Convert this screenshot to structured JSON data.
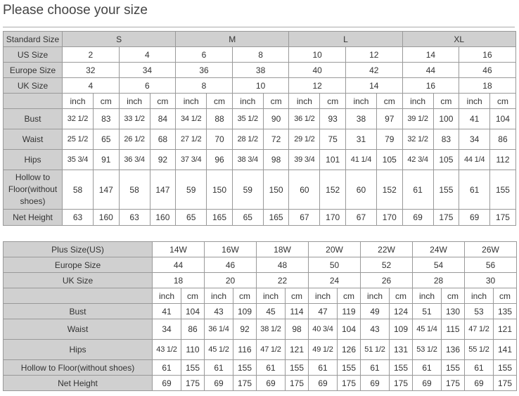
{
  "title": "Please choose your size",
  "colors": {
    "header_bg": "#d0d0d0",
    "border": "#999999",
    "text": "#333333"
  },
  "standard_table": {
    "row_labels": {
      "standard": "Standard Size",
      "us": "US Size",
      "europe": "Europe Size",
      "uk": "UK Size",
      "units": ""
    },
    "standard_sizes": [
      "S",
      "M",
      "L",
      "XL"
    ],
    "us_sizes": [
      "2",
      "4",
      "6",
      "8",
      "10",
      "12",
      "14",
      "16"
    ],
    "europe_sizes": [
      "32",
      "34",
      "36",
      "38",
      "40",
      "42",
      "44",
      "46"
    ],
    "uk_sizes": [
      "4",
      "6",
      "8",
      "10",
      "12",
      "14",
      "16",
      "18"
    ],
    "unit_labels": [
      "inch",
      "cm"
    ],
    "measurements": [
      {
        "label": "Bust",
        "values": [
          "32 1/2",
          "83",
          "33 1/2",
          "84",
          "34 1/2",
          "88",
          "35 1/2",
          "90",
          "36 1/2",
          "93",
          "38",
          "97",
          "39 1/2",
          "100",
          "41",
          "104"
        ]
      },
      {
        "label": "Waist",
        "values": [
          "25 1/2",
          "65",
          "26 1/2",
          "68",
          "27 1/2",
          "70",
          "28 1/2",
          "72",
          "29 1/2",
          "75",
          "31",
          "79",
          "32 1/2",
          "83",
          "34",
          "86"
        ]
      },
      {
        "label": "Hips",
        "values": [
          "35 3/4",
          "91",
          "36 3/4",
          "92",
          "37 3/4",
          "96",
          "38 3/4",
          "98",
          "39 3/4",
          "101",
          "41 1/4",
          "105",
          "42 3/4",
          "105",
          "44 1/4",
          "112"
        ]
      },
      {
        "label": "Hollow to Floor(without shoes)",
        "values": [
          "58",
          "147",
          "58",
          "147",
          "59",
          "150",
          "59",
          "150",
          "60",
          "152",
          "60",
          "152",
          "61",
          "155",
          "61",
          "155"
        ]
      },
      {
        "label": "Net Height",
        "values": [
          "63",
          "160",
          "63",
          "160",
          "65",
          "165",
          "65",
          "165",
          "67",
          "170",
          "67",
          "170",
          "69",
          "175",
          "69",
          "175"
        ]
      }
    ]
  },
  "plus_table": {
    "row_labels": {
      "us": "Plus Size(US)",
      "europe": "Europe Size",
      "uk": "UK Size",
      "units": ""
    },
    "us_sizes": [
      "14W",
      "16W",
      "18W",
      "20W",
      "22W",
      "24W",
      "26W"
    ],
    "europe_sizes": [
      "44",
      "46",
      "48",
      "50",
      "52",
      "54",
      "56"
    ],
    "uk_sizes": [
      "18",
      "20",
      "22",
      "24",
      "26",
      "28",
      "30"
    ],
    "unit_labels": [
      "inch",
      "cm"
    ],
    "measurements": [
      {
        "label": "Bust",
        "values": [
          "41",
          "104",
          "43",
          "109",
          "45",
          "114",
          "47",
          "119",
          "49",
          "124",
          "51",
          "130",
          "53",
          "135"
        ]
      },
      {
        "label": "Waist",
        "values": [
          "34",
          "86",
          "36 1/4",
          "92",
          "38 1/2",
          "98",
          "40 3/4",
          "104",
          "43",
          "109",
          "45 1/4",
          "115",
          "47 1/2",
          "121"
        ]
      },
      {
        "label": "Hips",
        "values": [
          "43 1/2",
          "110",
          "45 1/2",
          "116",
          "47 1/2",
          "121",
          "49 1/2",
          "126",
          "51 1/2",
          "131",
          "53 1/2",
          "136",
          "55 1/2",
          "141"
        ]
      },
      {
        "label": "Hollow to Floor(without shoes)",
        "values": [
          "61",
          "155",
          "61",
          "155",
          "61",
          "155",
          "61",
          "155",
          "61",
          "155",
          "61",
          "155",
          "61",
          "155"
        ]
      },
      {
        "label": "Net Height",
        "values": [
          "69",
          "175",
          "69",
          "175",
          "69",
          "175",
          "69",
          "175",
          "69",
          "175",
          "69",
          "175",
          "69",
          "175"
        ]
      }
    ]
  }
}
